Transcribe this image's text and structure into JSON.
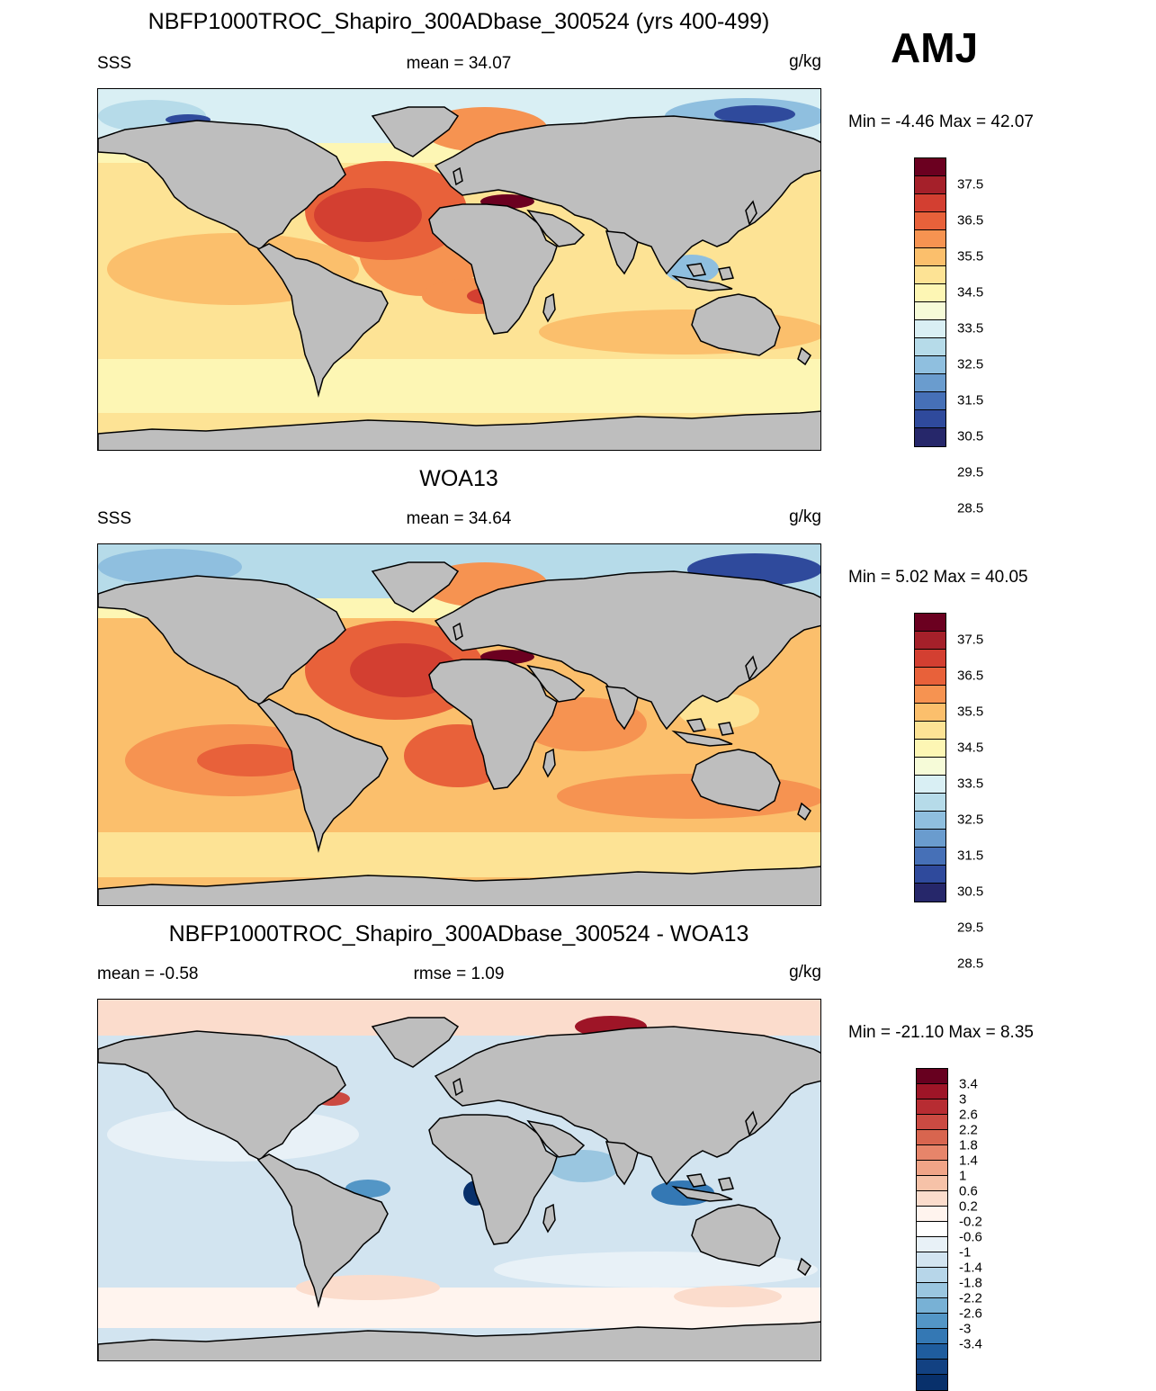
{
  "season": "AMJ",
  "colors": {
    "land": "#bebebe",
    "frame": "#000000"
  },
  "panels": [
    {
      "id": "model",
      "title": "NBFP1000TROC_Shapiro_300ADbase_300524 (yrs 400-499)",
      "left_label": "SSS",
      "center_label": "mean =  34.07",
      "units": "g/kg",
      "minmax": "Min =  -4.46 Max =  42.07",
      "colorbar": {
        "labels": [
          "37.5",
          "36.5",
          "35.5",
          "34.5",
          "33.5",
          "32.5",
          "31.5",
          "30.5",
          "29.5",
          "28.5"
        ],
        "colors": [
          "#6b0020",
          "#a5202a",
          "#d33f31",
          "#e8613a",
          "#f69351",
          "#fbbf6c",
          "#fde395",
          "#fdf6b4",
          "#f6fbd8",
          "#d9eff4",
          "#b6dbe9",
          "#8fbfdf",
          "#6a9cce",
          "#4670b7",
          "#2f4a9c",
          "#26276a"
        ]
      }
    },
    {
      "id": "obs",
      "title": "WOA13",
      "left_label": "SSS",
      "center_label": "mean =  34.64",
      "units": "g/kg",
      "minmax": "Min =   5.02 Max =  40.05",
      "colorbar": {
        "labels": [
          "37.5",
          "36.5",
          "35.5",
          "34.5",
          "33.5",
          "32.5",
          "31.5",
          "30.5",
          "29.5",
          "28.5"
        ],
        "colors": [
          "#6b0020",
          "#a5202a",
          "#d33f31",
          "#e8613a",
          "#f69351",
          "#fbbf6c",
          "#fde395",
          "#fdf6b4",
          "#f6fbd8",
          "#d9eff4",
          "#b6dbe9",
          "#8fbfdf",
          "#6a9cce",
          "#4670b7",
          "#2f4a9c",
          "#26276a"
        ]
      }
    },
    {
      "id": "diff",
      "title": "NBFP1000TROC_Shapiro_300ADbase_300524 - WOA13",
      "left_label": "mean =  -0.58",
      "center_label": "rmse =   1.09",
      "units": "g/kg",
      "minmax": "Min = -21.10 Max =   8.35",
      "colorbar": {
        "labels": [
          "3.4",
          "3",
          "2.6",
          "2.2",
          "1.8",
          "1.4",
          "1",
          "0.6",
          "0.2",
          "-0.2",
          "-0.6",
          "-1",
          "-1.4",
          "-1.8",
          "-2.2",
          "-2.6",
          "-3",
          "-3.4"
        ],
        "colors": [
          "#67001f",
          "#9e1527",
          "#b72c32",
          "#cb4a42",
          "#d8654f",
          "#e7856a",
          "#f0a487",
          "#f6c2a8",
          "#fbdccc",
          "#fff4ee",
          "#ffffff",
          "#e8f1f7",
          "#d2e4f0",
          "#b7d6e9",
          "#9ac6e0",
          "#78b1d5",
          "#5396c6",
          "#3478b4",
          "#1f5d9e",
          "#124182",
          "#08306b"
        ]
      }
    }
  ]
}
